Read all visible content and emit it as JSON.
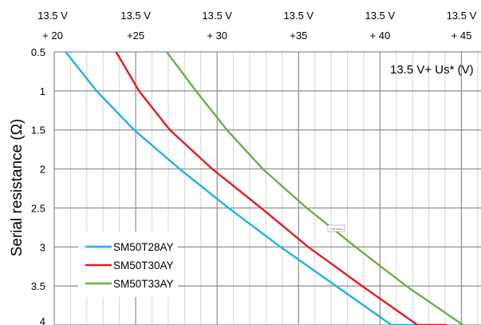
{
  "chart_data": {
    "type": "line",
    "ylabel": "Serial resistance (Ω)",
    "x_axis_label": "13.5 V+ Us* (V)",
    "x_ticks": [
      {
        "value": 20,
        "line1": "13.5 V",
        "line2": "+ 20"
      },
      {
        "value": 25,
        "line1": "13.5 V",
        "line2": "+25"
      },
      {
        "value": 30,
        "line1": "13.5 V",
        "line2": "+ 30"
      },
      {
        "value": 35,
        "line1": "13.5 V",
        "line2": "+35"
      },
      {
        "value": 40,
        "line1": "13.5 V",
        "line2": "+ 40"
      },
      {
        "value": 45,
        "line1": "13.5 V",
        "line2": "+   45"
      }
    ],
    "xlim": [
      20,
      46.2
    ],
    "ylim": [
      0.5,
      4
    ],
    "y_inverted": true,
    "y_ticks": [
      {
        "value": 0.5,
        "label": "0.5"
      },
      {
        "value": 1,
        "label": "1"
      },
      {
        "value": 1.5,
        "label": "1.5"
      },
      {
        "value": 2,
        "label": "2"
      },
      {
        "value": 2.5,
        "label": "2.5"
      },
      {
        "value": 3,
        "label": "3"
      },
      {
        "value": 3.5,
        "label": "3.5"
      },
      {
        "value": 4,
        "label": "4"
      }
    ],
    "grid": {
      "major_x_step": 5,
      "minor_x_step": 1,
      "major_y_step": 0.5
    },
    "legend_position": "bottom-left",
    "series": [
      {
        "name": "SM50T28AY",
        "color": "#19b4ea",
        "x": [
          20.7,
          22.6,
          24.9,
          27.7,
          30.7,
          33.9,
          37.3,
          40.7,
          43.5
        ],
        "y": [
          0.5,
          1.0,
          1.5,
          2.0,
          2.5,
          3.0,
          3.5,
          4.0,
          4.0
        ]
      },
      {
        "name": "SM50T30AY",
        "color": "#e8191e",
        "x": [
          23.8,
          25.2,
          27.1,
          29.7,
          32.7,
          35.6,
          38.9,
          42.3,
          44.1
        ],
        "y": [
          0.5,
          1.0,
          1.5,
          2.0,
          2.5,
          3.0,
          3.5,
          4.0,
          4.0
        ]
      },
      {
        "name": "SM50T33AY",
        "color": "#70ad47",
        "x": [
          26.9,
          28.7,
          30.6,
          32.8,
          35.5,
          38.5,
          41.6,
          45.1,
          45.1
        ],
        "y": [
          0.5,
          1.0,
          1.5,
          2.0,
          2.5,
          3.0,
          3.5,
          4.0,
          4.0
        ]
      }
    ],
    "annotation": "Plot Area"
  }
}
